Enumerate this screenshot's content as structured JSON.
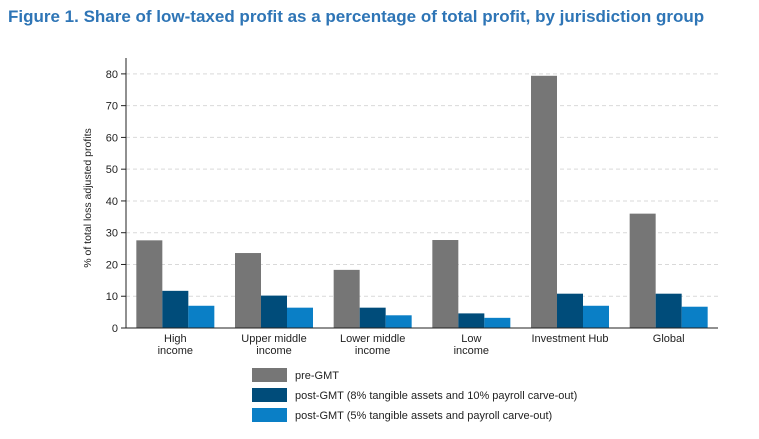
{
  "figure": {
    "title": "Figure 1. Share of low-taxed profit as a percentage of total profit, by jurisdiction group"
  },
  "chart_data": {
    "type": "bar",
    "title": "Figure 1. Share of low-taxed profit as a percentage of total profit, by jurisdiction group",
    "xlabel": "",
    "ylabel": "% of total loss adjusted profits",
    "ylim": [
      0,
      85
    ],
    "yticks": [
      0,
      10,
      20,
      30,
      40,
      50,
      60,
      70,
      80
    ],
    "grid": "horizontal dashed",
    "legend_position": "bottom",
    "categories": [
      [
        "High",
        "income"
      ],
      [
        "Upper middle",
        "income"
      ],
      [
        "Lower middle",
        "income"
      ],
      [
        "Low",
        "income"
      ],
      [
        "Investment Hub"
      ],
      [
        "Global"
      ]
    ],
    "series": [
      {
        "name": "pre-GMT",
        "color": "#767676",
        "values": [
          27.6,
          23.6,
          18.3,
          27.7,
          79.4,
          36.0
        ]
      },
      {
        "name": "post-GMT (8% tangible assets and 10% payroll carve-out)",
        "color": "#004c7a",
        "values": [
          11.7,
          10.2,
          6.4,
          4.6,
          10.8,
          10.8
        ]
      },
      {
        "name": "post-GMT (5% tangible assets and payroll carve-out)",
        "color": "#0a7fc6",
        "values": [
          7.0,
          6.4,
          4.0,
          3.2,
          7.0,
          6.7
        ]
      }
    ]
  }
}
